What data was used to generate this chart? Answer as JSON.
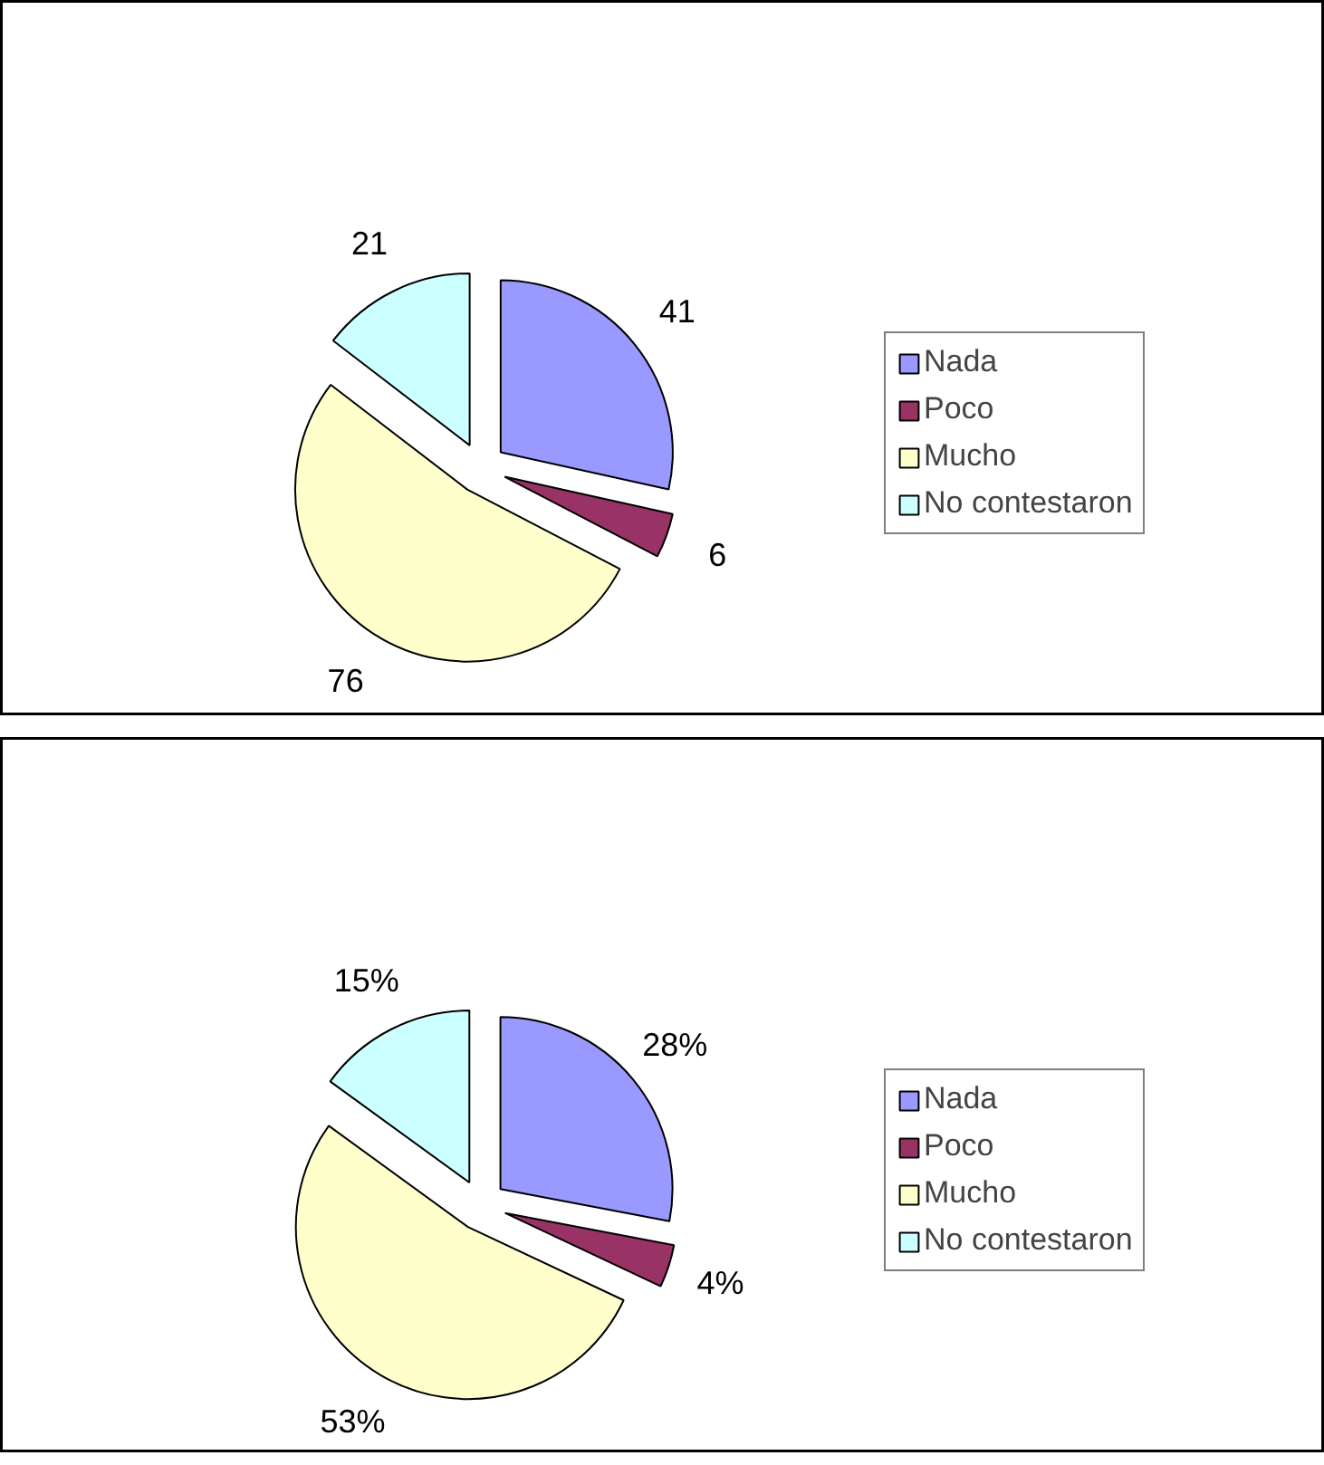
{
  "chart_data": [
    {
      "type": "pie",
      "categories": [
        "Nada",
        "Poco",
        "Mucho",
        "No contestaron"
      ],
      "values": [
        41,
        6,
        76,
        21
      ],
      "colors": [
        "#9999ff",
        "#993366",
        "#ffffcc",
        "#ccffff"
      ],
      "data_labels": true,
      "legend": "right"
    },
    {
      "type": "pie",
      "categories": [
        "Nada",
        "Poco",
        "Mucho",
        "No contestaron"
      ],
      "values": [
        28,
        4,
        53,
        15
      ],
      "colors": [
        "#9999ff",
        "#993366",
        "#ffffcc",
        "#ccffff"
      ],
      "value_labels": [
        "28%",
        "4%",
        "53%",
        "15%"
      ],
      "legend": "right"
    }
  ]
}
